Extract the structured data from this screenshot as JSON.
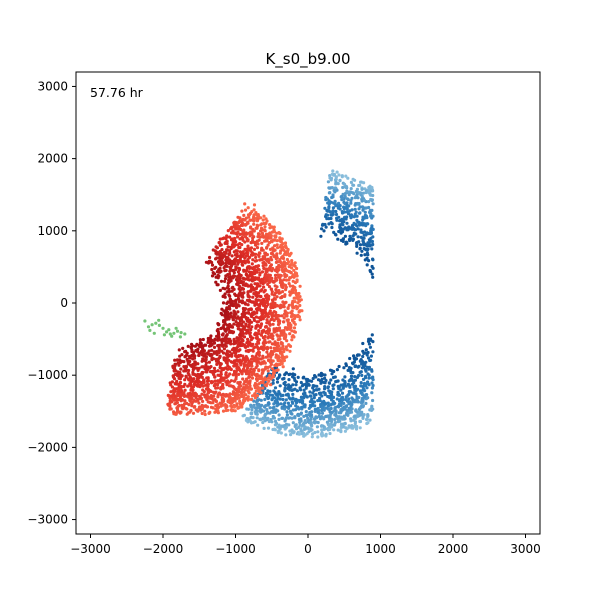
{
  "chart_data": {
    "type": "scatter",
    "title": "K_s0_b9.00",
    "annotation": "57.76 hr",
    "xlabel": "",
    "ylabel": "",
    "xlim": [
      -3200,
      3200
    ],
    "ylim": [
      -3200,
      3200
    ],
    "xticks": [
      -3000,
      -2000,
      -1000,
      0,
      1000,
      2000,
      3000
    ],
    "yticks": [
      3000,
      2000,
      1000,
      0,
      -1000,
      -2000,
      -3000
    ],
    "grid": false,
    "legend": "none",
    "colors": {
      "blue_dark": "#0b4f93",
      "blue_mid": "#2b7bba",
      "blue_light": "#8cc0dd",
      "red_dark": "#a50f15",
      "red_mid": "#de2d26",
      "red_light": "#fb6a4a",
      "green": "#74c476"
    },
    "series": [
      {
        "color_role": "blue",
        "shape": "crescent",
        "arc_center": [
          0,
          0
        ],
        "arc_outer_radius": 1850,
        "arc_inner_radius": 950,
        "arc_angle_range_deg": [
          -120,
          80
        ],
        "extent_x": [
          -2300,
          900
        ],
        "extent_y": [
          -1950,
          1850
        ]
      },
      {
        "color_role": "red",
        "shape": "crescent",
        "arc_center": [
          -1800,
          0
        ],
        "arc_outer_radius": 1700,
        "arc_inner_radius": 600,
        "arc_angle_range_deg": [
          -95,
          55
        ],
        "extent_x": [
          -2700,
          0
        ],
        "extent_y": [
          -1550,
          1400
        ]
      },
      {
        "color_role": "green",
        "shape": "cluster",
        "points": [
          [
            -2200,
            -330
          ],
          [
            -2150,
            -300
          ],
          [
            -2100,
            -280
          ],
          [
            -2050,
            -310
          ],
          [
            -2000,
            -350
          ],
          [
            -1950,
            -400
          ],
          [
            -1900,
            -430
          ],
          [
            -1850,
            -420
          ],
          [
            -1800,
            -390
          ],
          [
            -1750,
            -410
          ],
          [
            -1700,
            -430
          ],
          [
            -2250,
            -250
          ],
          [
            -2180,
            -380
          ],
          [
            -2120,
            -420
          ],
          [
            -1980,
            -440
          ],
          [
            -1880,
            -460
          ],
          [
            -1820,
            -350
          ],
          [
            -1760,
            -470
          ],
          [
            -2060,
            -240
          ],
          [
            -1920,
            -370
          ]
        ]
      }
    ]
  }
}
